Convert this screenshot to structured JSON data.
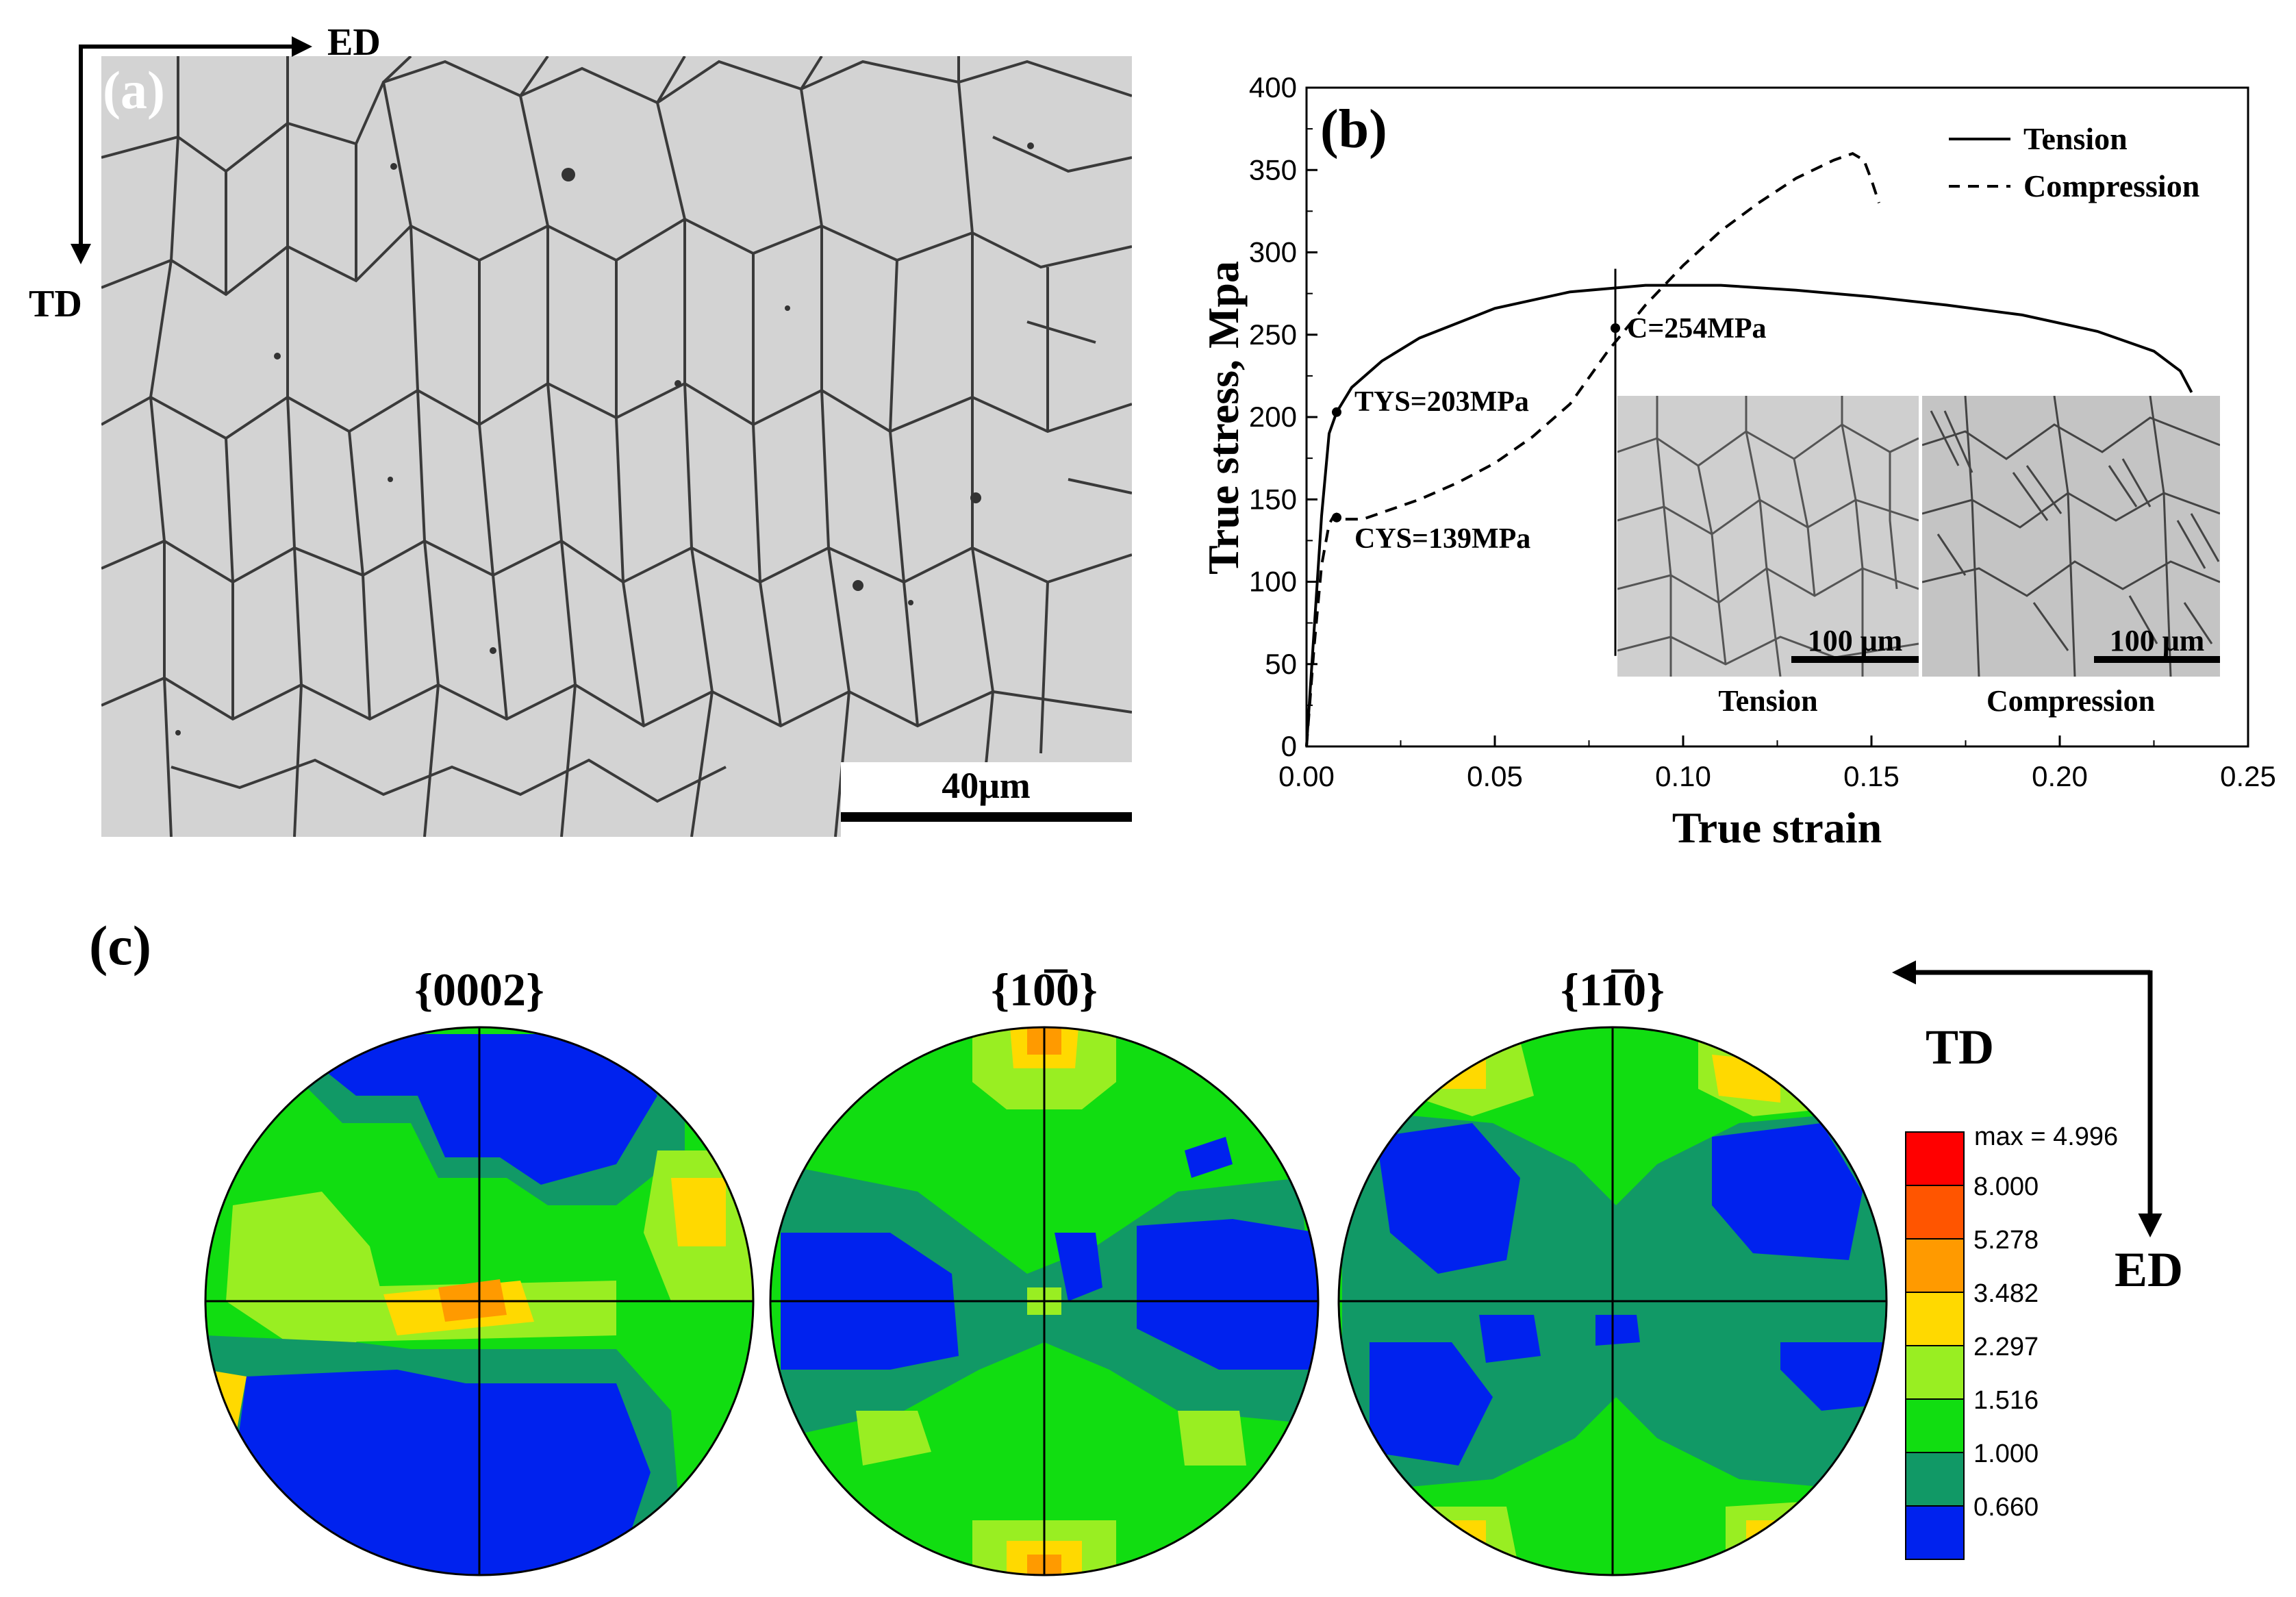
{
  "panel_a": {
    "label": "(a)",
    "axis_ed": "ED",
    "axis_td": "TD",
    "scale_bar": "40μm"
  },
  "panel_b": {
    "label": "(b)",
    "annotations": {
      "tys": "TYS=203MPa",
      "cys": "CYS=139MPa",
      "c": "C=254MPa"
    },
    "inset": {
      "left_label": "Tension",
      "right_label": "Compression",
      "left_scale": "100 μm",
      "right_scale": "100 μm"
    }
  },
  "panel_c": {
    "label": "(c)",
    "pole_figures": [
      {
        "title": "{0002}"
      },
      {
        "title": "{10̅0}"
      },
      {
        "title": "{11̅0}"
      }
    ],
    "legend": {
      "max": "max = 4.996",
      "levels": [
        "8.000",
        "5.278",
        "3.482",
        "2.297",
        "1.516",
        "1.000",
        "0.660"
      ],
      "colors": [
        "#ff0000",
        "#ff5500",
        "#ff9a00",
        "#ffd900",
        "#99ee22",
        "#11dd11",
        "#119966",
        "#0022ee"
      ]
    },
    "axis_td": "TD",
    "axis_ed": "ED"
  },
  "chart_data": {
    "type": "line",
    "xlabel": "True strain",
    "ylabel": "True stress, Mpa",
    "xlim": [
      0,
      0.25
    ],
    "ylim": [
      0,
      400
    ],
    "xticks": [
      "0.00",
      "0.05",
      "0.10",
      "0.15",
      "0.20",
      "0.25"
    ],
    "yticks": [
      "0",
      "50",
      "100",
      "150",
      "200",
      "250",
      "300",
      "350",
      "400"
    ],
    "legend": "top-right",
    "series": [
      {
        "name": "Tension",
        "style": "solid",
        "x": [
          0,
          0.002,
          0.004,
          0.006,
          0.008,
          0.012,
          0.02,
          0.03,
          0.05,
          0.07,
          0.09,
          0.11,
          0.13,
          0.15,
          0.17,
          0.19,
          0.21,
          0.225,
          0.232,
          0.235
        ],
        "y": [
          0,
          70,
          140,
          190,
          203,
          218,
          234,
          248,
          266,
          276,
          280,
          280,
          277,
          273,
          268,
          262,
          252,
          240,
          228,
          215
        ]
      },
      {
        "name": "Compression",
        "style": "dashed",
        "x": [
          0,
          0.002,
          0.004,
          0.006,
          0.007,
          0.008,
          0.01,
          0.015,
          0.02,
          0.03,
          0.04,
          0.05,
          0.06,
          0.07,
          0.08,
          0.09,
          0.1,
          0.11,
          0.12,
          0.13,
          0.14,
          0.145,
          0.148,
          0.15,
          0.152
        ],
        "y": [
          0,
          60,
          110,
          135,
          139,
          141,
          138,
          138,
          142,
          150,
          160,
          172,
          188,
          208,
          240,
          268,
          292,
          313,
          330,
          345,
          356,
          360,
          356,
          344,
          330
        ]
      }
    ],
    "points": [
      {
        "x": 0.008,
        "y": 203
      },
      {
        "x": 0.008,
        "y": 139
      },
      {
        "x": 0.082,
        "y": 254
      }
    ],
    "vertical_marker_x": 0.082
  }
}
